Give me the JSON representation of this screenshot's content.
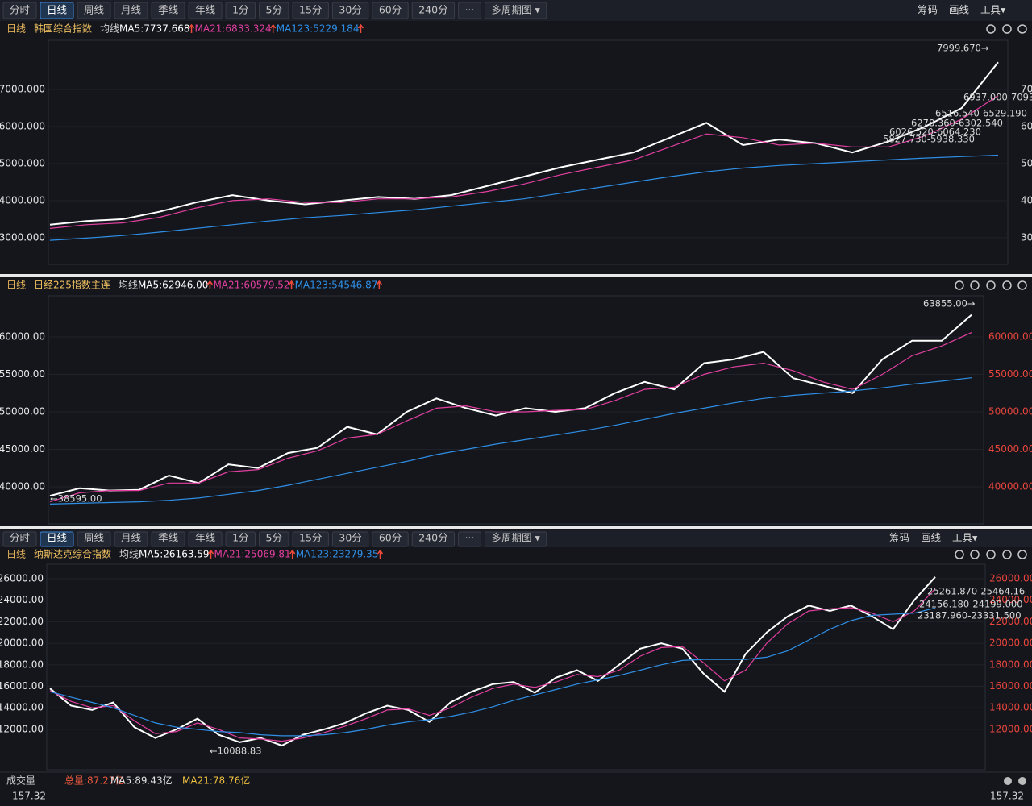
{
  "toolbar": {
    "buttons": [
      "分时",
      "日线",
      "周线",
      "月线",
      "季线",
      "年线",
      "1分",
      "5分",
      "15分",
      "30分",
      "60分",
      "240分",
      "···",
      "多周期图 ▾"
    ],
    "selected": 1,
    "right": [
      "筹码",
      "画线",
      "工具▾"
    ]
  },
  "chart_data": [
    {
      "type": "line",
      "period": "日线",
      "title": "韩国综合指数",
      "ma_label": "均线",
      "grid": true,
      "ylim": [
        2280,
        8220
      ],
      "yticks": [
        {
          "value": 3000,
          "label": "3000.000"
        },
        {
          "value": 4000,
          "label": "4000.000"
        },
        {
          "value": 5000,
          "label": "5000.000"
        },
        {
          "value": 6000,
          "label": "6000.000"
        },
        {
          "value": 7000,
          "label": "7000.000"
        }
      ],
      "series": [
        {
          "label": "MA5:7737.668",
          "color": "#ffffff",
          "values": [
            3350,
            3450,
            3500,
            3700,
            3950,
            4150,
            4000,
            3900,
            4000,
            4100,
            4050,
            4150,
            4400,
            4650,
            4900,
            5100,
            5300,
            5700,
            6100,
            5500,
            5650,
            5550,
            5300,
            5600,
            6000,
            6500,
            7737.668
          ]
        },
        {
          "label": "MA21:6833.324",
          "color": "#e23fa0",
          "values": [
            3250,
            3350,
            3400,
            3550,
            3800,
            4000,
            4050,
            3950,
            3950,
            4050,
            4050,
            4100,
            4250,
            4450,
            4700,
            4900,
            5100,
            5450,
            5800,
            5700,
            5500,
            5550,
            5450,
            5450,
            5750,
            6200,
            6833.324
          ]
        },
        {
          "label": "MA123:5229.184",
          "color": "#2f8fe6",
          "values": [
            2930,
            2990,
            3060,
            3150,
            3250,
            3350,
            3450,
            3540,
            3600,
            3680,
            3750,
            3850,
            3950,
            4050,
            4200,
            4350,
            4500,
            4650,
            4780,
            4880,
            4950,
            5000,
            5050,
            5100,
            5150,
            5190,
            5229.184
          ]
        }
      ],
      "annotations": [
        "7999.670→",
        "6937.000-7093",
        "6516.540-6529.190",
        "6278.360-6302.540",
        "6026.520-6064.230",
        "5827.730-5938.330"
      ]
    },
    {
      "type": "line",
      "period": "日线",
      "title": "日经225指数主连",
      "ma_label": "均线",
      "grid": true,
      "ylim": [
        35050,
        64950
      ],
      "yticks": [
        {
          "value": 40000,
          "label": "40000.00"
        },
        {
          "value": 45000,
          "label": "45000.00"
        },
        {
          "value": 50000,
          "label": "50000.00"
        },
        {
          "value": 55000,
          "label": "55000.00"
        },
        {
          "value": 60000,
          "label": "60000.00"
        }
      ],
      "series": [
        {
          "label": "MA5:62946.00",
          "color": "#ffffff",
          "values": [
            38800,
            39800,
            39500,
            39600,
            41500,
            40500,
            43000,
            42500,
            44500,
            45200,
            48000,
            47000,
            50000,
            51800,
            50500,
            49500,
            50500,
            50000,
            50500,
            52500,
            54000,
            53000,
            56500,
            57000,
            58000,
            54500,
            53500,
            52500,
            57000,
            59500,
            59500,
            62946
          ]
        },
        {
          "label": "MA21:60579.52",
          "color": "#e23fa0",
          "values": [
            38000,
            39200,
            39500,
            39500,
            40500,
            40500,
            42000,
            42300,
            43800,
            44800,
            46500,
            47000,
            48800,
            50500,
            50800,
            50000,
            50000,
            50200,
            50300,
            51500,
            53000,
            53300,
            55000,
            56000,
            56500,
            55500,
            54000,
            53000,
            55000,
            57500,
            58800,
            60579.52
          ]
        },
        {
          "label": "MA123:54546.87",
          "color": "#2f8fe6",
          "values": [
            37700,
            37800,
            37900,
            38000,
            38200,
            38500,
            39000,
            39500,
            40200,
            41000,
            41800,
            42600,
            43400,
            44300,
            45000,
            45700,
            46300,
            46900,
            47500,
            48200,
            49000,
            49800,
            50500,
            51200,
            51800,
            52200,
            52500,
            52800,
            53200,
            53700,
            54100,
            54546.87
          ]
        }
      ],
      "annotations": [
        "63855.00→",
        "←38595.00"
      ]
    },
    {
      "type": "line",
      "period": "日线",
      "title": "纳斯达克综合指数",
      "ma_label": "均线",
      "grid": true,
      "ylim": [
        8250,
        26970
      ],
      "yticks": [
        {
          "value": 12000,
          "label": "12000.00"
        },
        {
          "value": 14000,
          "label": "14000.00"
        },
        {
          "value": 16000,
          "label": "16000.00"
        },
        {
          "value": 18000,
          "label": "18000.00"
        },
        {
          "value": 20000,
          "label": "20000.00"
        },
        {
          "value": 22000,
          "label": "22000.00"
        },
        {
          "value": 24000,
          "label": "24000.00"
        },
        {
          "value": 26000,
          "label": "26000.00"
        }
      ],
      "series": [
        {
          "label": "MA5:26163.59",
          "color": "#ffffff",
          "values": [
            15800,
            14200,
            13800,
            14500,
            12200,
            11200,
            12000,
            13000,
            11500,
            10800,
            11200,
            10500,
            11500,
            12000,
            12600,
            13500,
            14200,
            13800,
            12700,
            14500,
            15500,
            16200,
            16400,
            15400,
            16800,
            17500,
            16500,
            18000,
            19500,
            20000,
            19500,
            17200,
            15500,
            19000,
            21000,
            22500,
            23500,
            23000,
            23500,
            22500,
            21300,
            24000,
            26163.59
          ]
        },
        {
          "label": "MA21:25069.81",
          "color": "#e23fa0",
          "values": [
            15600,
            14600,
            14000,
            14200,
            12800,
            11600,
            11800,
            12600,
            12000,
            11200,
            11100,
            10900,
            11200,
            11700,
            12300,
            13000,
            13800,
            13900,
            13300,
            14000,
            15000,
            15800,
            16200,
            15900,
            16400,
            17100,
            16900,
            17500,
            18800,
            19600,
            19700,
            18200,
            16500,
            17500,
            20000,
            21800,
            23000,
            23200,
            23300,
            22800,
            22000,
            23000,
            25069.81
          ]
        },
        {
          "label": "MA123:23279.35",
          "color": "#2f8fe6",
          "values": [
            15500,
            15000,
            14500,
            14000,
            13300,
            12600,
            12200,
            12000,
            11800,
            11700,
            11500,
            11400,
            11400,
            11500,
            11700,
            12000,
            12400,
            12700,
            12900,
            13200,
            13600,
            14100,
            14700,
            15200,
            15700,
            16200,
            16600,
            17000,
            17500,
            18000,
            18400,
            18500,
            18500,
            18500,
            18700,
            19300,
            20300,
            21300,
            22100,
            22600,
            22700,
            22800,
            23279.35
          ]
        }
      ],
      "annotations": [
        "←10088.83",
        "25261.870-25464.16",
        "24156.180-24199.000",
        "23187.960-23331.500"
      ]
    }
  ],
  "volume": {
    "title": "成交量",
    "total": "总量:87.27亿",
    "ma5": "MA5:89.43亿",
    "ma21": "MA21:78.76亿",
    "scale": "157.32"
  }
}
